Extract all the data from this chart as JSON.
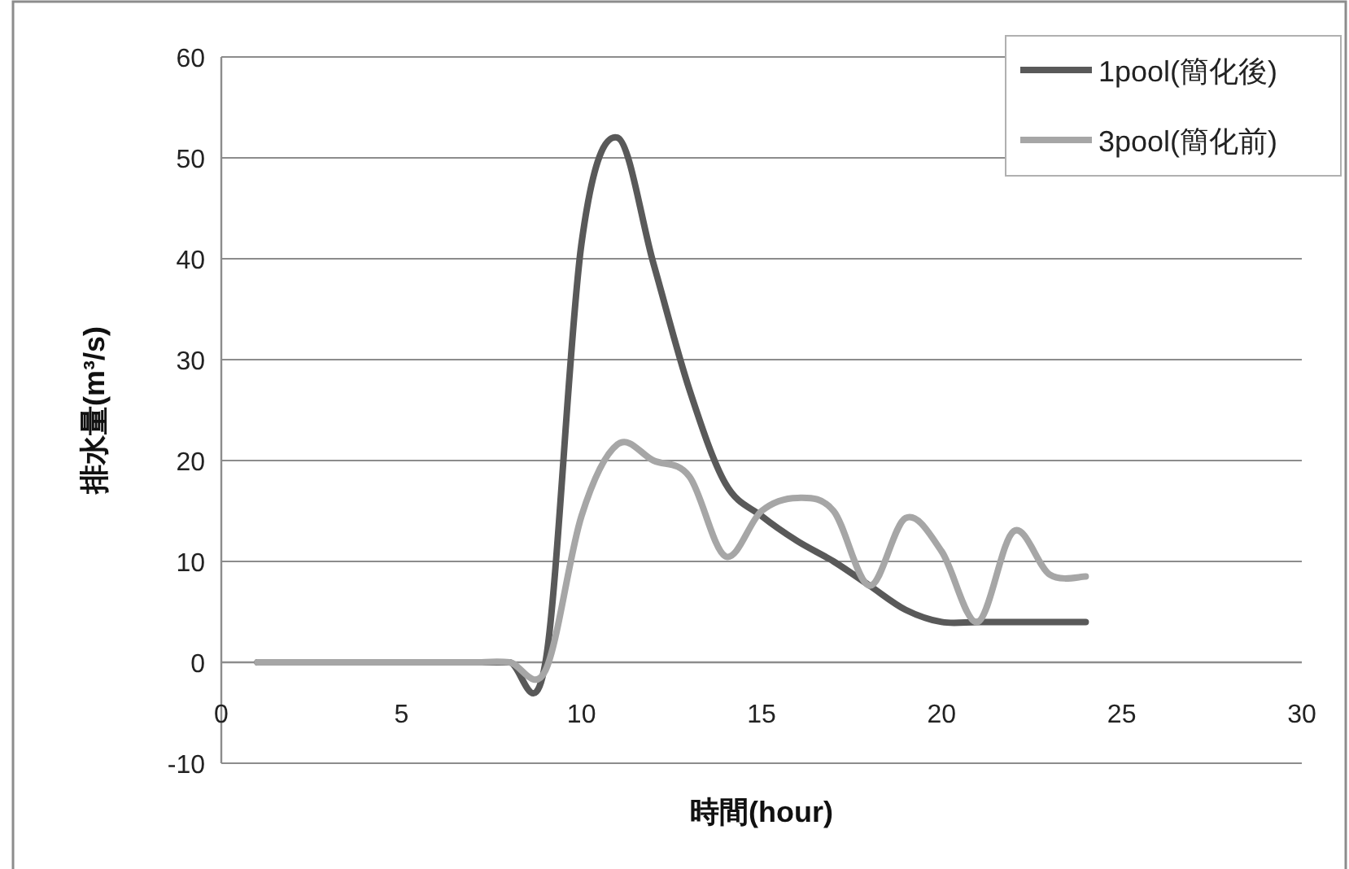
{
  "chart_data": {
    "type": "line",
    "xlabel": "時間(hour)",
    "ylabel": "排水量(m³/s)",
    "x": [
      1,
      2,
      3,
      4,
      5,
      6,
      7,
      8,
      9,
      10,
      11,
      12,
      13,
      14,
      15,
      16,
      17,
      18,
      19,
      20,
      21,
      22,
      23,
      24
    ],
    "series": [
      {
        "name": "1pool(簡化後)",
        "color": "#595959",
        "values": [
          0,
          0,
          0,
          0,
          0,
          0,
          0,
          0,
          0,
          41.5,
          52,
          39.5,
          27,
          17.7,
          14.5,
          12,
          10,
          7.6,
          5.2,
          4,
          4,
          4,
          4,
          4
        ]
      },
      {
        "name": "3pool(簡化前)",
        "color": "#a6a6a6",
        "values": [
          0,
          0,
          0,
          0,
          0,
          0,
          0,
          0,
          -0.8,
          14.5,
          21.6,
          20,
          18.4,
          10.5,
          15,
          16.3,
          15,
          7.6,
          14.3,
          11,
          4,
          13,
          8.7,
          8.5
        ]
      }
    ],
    "xlim": [
      0,
      30
    ],
    "xticks": [
      0,
      5,
      10,
      15,
      20,
      25,
      30
    ],
    "ylim": [
      -10,
      60
    ],
    "yticks": [
      -10,
      0,
      10,
      20,
      30,
      40,
      50,
      60
    ],
    "grid": "y",
    "legend": "top right",
    "marker": "none",
    "line_style": "solid"
  }
}
